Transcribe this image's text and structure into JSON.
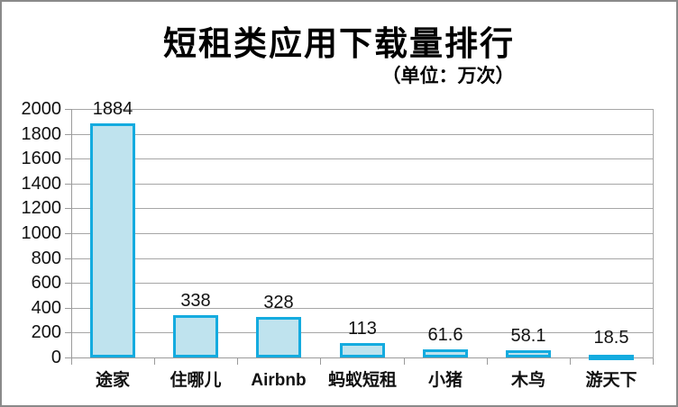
{
  "chart_data": {
    "type": "bar",
    "title": "短租类应用下载量排行",
    "subtitle": "（单位：万次）",
    "categories": [
      "途家",
      "住哪儿",
      "Airbnb",
      "蚂蚁短租",
      "小猪",
      "木鸟",
      "游天下"
    ],
    "values": [
      1884,
      338,
      328,
      113,
      61.6,
      58.1,
      18.5
    ],
    "value_labels": [
      "1884",
      "338",
      "328",
      "113",
      "61.6",
      "58.1",
      "18.5"
    ],
    "xlabel": "",
    "ylabel": "",
    "ylim": [
      0,
      2000
    ],
    "y_ticks": [
      0,
      200,
      400,
      600,
      800,
      1000,
      1200,
      1400,
      1600,
      1800,
      2000
    ],
    "grid": true,
    "legend": "none",
    "colors": {
      "bar_fill": "#bfe3ee",
      "bar_border": "#14abdf",
      "grid": "#a6a6a6",
      "axis": "#9b9b9b",
      "text": "#111111",
      "frame_border": "#8a8a8a",
      "background": "#ffffff"
    }
  }
}
